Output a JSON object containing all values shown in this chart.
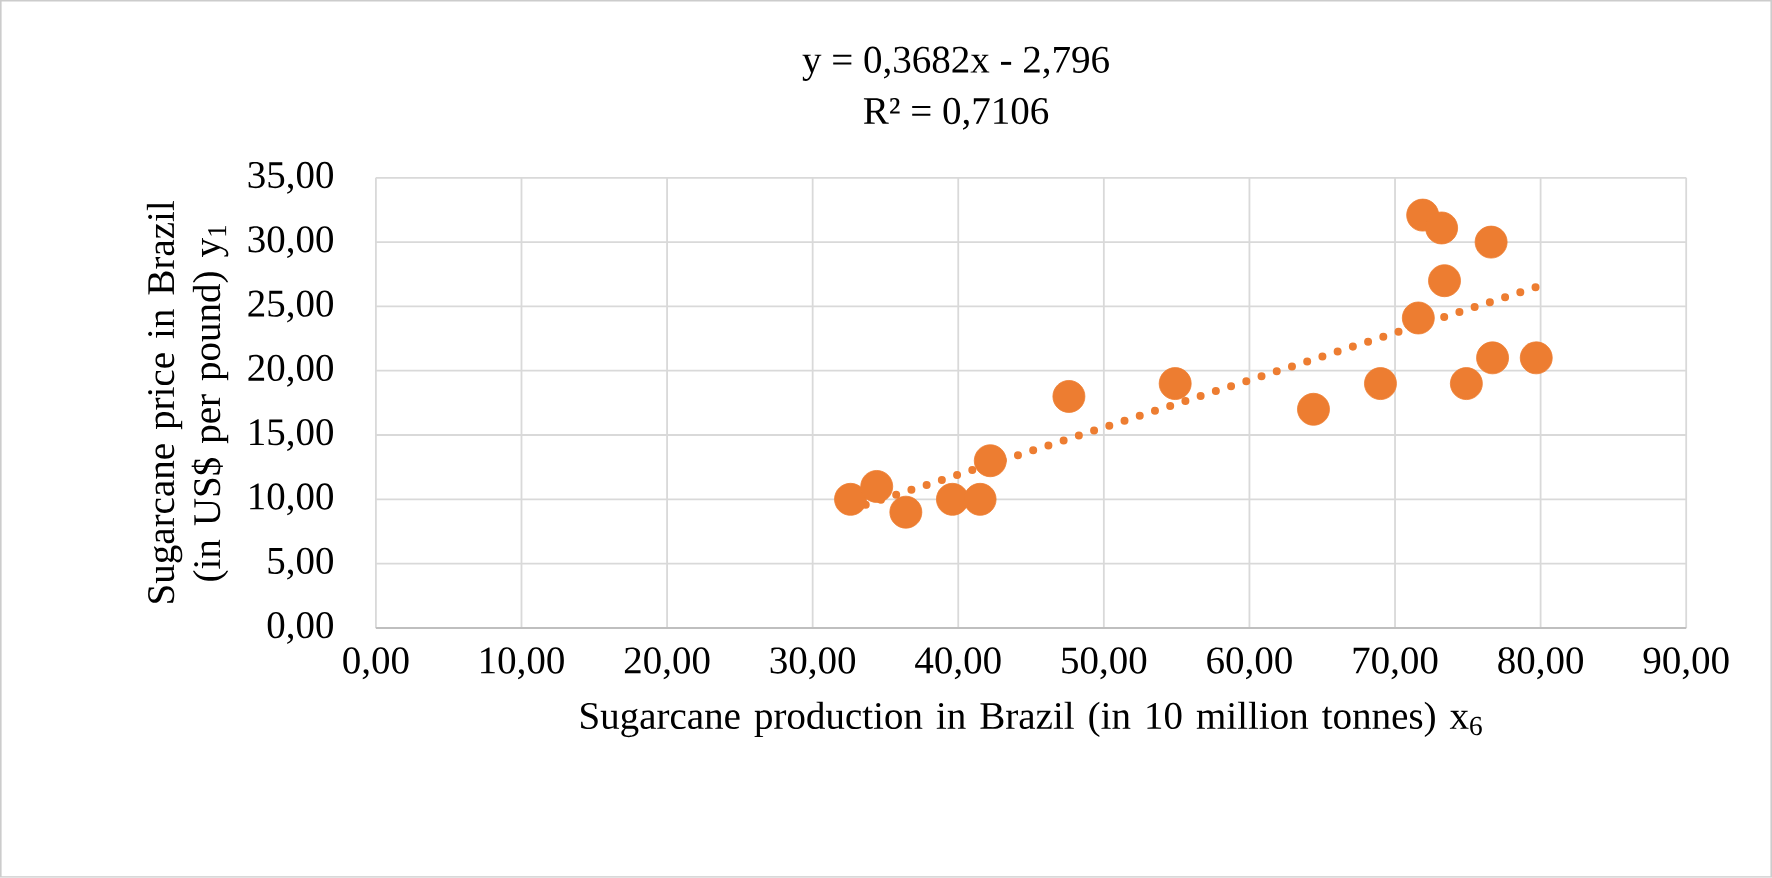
{
  "chart_data": {
    "type": "scatter",
    "annotations": [
      "y = 0,3682x - 2,796",
      "R² = 0,7106"
    ],
    "xlabel": "Sugarcane production in Brazil (in 10 million tonnes) x$_{6}$",
    "ylabel": "Sugarcane price in Brazil (in US$ per pound) y$_{1}$",
    "xlim": [
      0,
      90
    ],
    "ylim": [
      0,
      35
    ],
    "xticks": [
      {
        "value": 0,
        "label": "0,00"
      },
      {
        "value": 10,
        "label": "10,00"
      },
      {
        "value": 20,
        "label": "20,00"
      },
      {
        "value": 30,
        "label": "30,00"
      },
      {
        "value": 40,
        "label": "40,00"
      },
      {
        "value": 50,
        "label": "50,00"
      },
      {
        "value": 60,
        "label": "60,00"
      },
      {
        "value": 70,
        "label": "70,00"
      },
      {
        "value": 80,
        "label": "80,00"
      },
      {
        "value": 90,
        "label": "90,00"
      }
    ],
    "yticks": [
      {
        "value": 0,
        "label": "0,00"
      },
      {
        "value": 5,
        "label": "5,00"
      },
      {
        "value": 10,
        "label": "10,00"
      },
      {
        "value": 15,
        "label": "15,00"
      },
      {
        "value": 20,
        "label": "20,00"
      },
      {
        "value": 25,
        "label": "25,00"
      },
      {
        "value": 30,
        "label": "30,00"
      },
      {
        "value": 35,
        "label": "35,00"
      }
    ],
    "grid": true,
    "marker": "circle",
    "series": [
      {
        "type": "scatter",
        "color": "#ed7d31",
        "x": [
          32.6,
          34.4,
          36.4,
          39.6,
          41.5,
          42.2,
          47.6,
          54.9,
          64.4,
          69.0,
          71.6,
          71.9,
          73.2,
          73.4,
          76.6,
          74.9,
          76.7,
          79.7
        ],
        "values": [
          10.0,
          11.0,
          9.0,
          10.0,
          10.0,
          13.0,
          18.0,
          19.0,
          17.0,
          19.0,
          24.1,
          32.1,
          31.1,
          27.0,
          30.0,
          19.0,
          21.0,
          21.0
        ]
      },
      {
        "type": "line",
        "color": "#ed7d31",
        "line_style": "dotted",
        "marker": "none",
        "x": [
          32.6,
          79.7
        ],
        "values": [
          9.2,
          26.5
        ]
      }
    ]
  }
}
